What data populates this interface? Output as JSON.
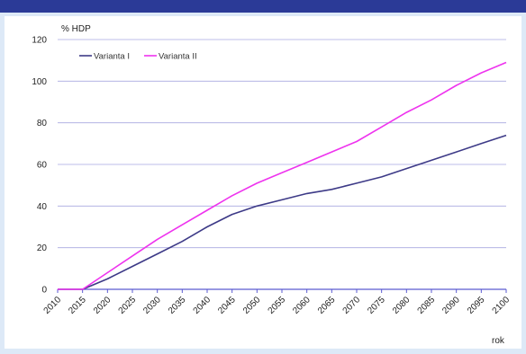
{
  "chart_data": {
    "type": "line",
    "ylabel": "% HDP",
    "xlabel": "rok",
    "ylim": [
      0,
      120
    ],
    "yticks": [
      0,
      20,
      40,
      60,
      80,
      100,
      120
    ],
    "xlim": [
      2010,
      2100
    ],
    "xticks": [
      2010,
      2015,
      2020,
      2025,
      2030,
      2035,
      2040,
      2045,
      2050,
      2055,
      2060,
      2065,
      2070,
      2075,
      2080,
      2085,
      2090,
      2095,
      2100
    ],
    "grid": true,
    "legend_position": "top-left",
    "series": [
      {
        "name": "Varianta I",
        "color": "#3d3a87",
        "x": [
          2010,
          2015,
          2020,
          2025,
          2030,
          2035,
          2040,
          2045,
          2050,
          2055,
          2060,
          2065,
          2070,
          2075,
          2080,
          2085,
          2090,
          2095,
          2100
        ],
        "y": [
          0,
          0,
          5,
          11,
          17,
          23,
          30,
          36,
          40,
          43,
          46,
          48,
          51,
          54,
          58,
          62,
          66,
          70,
          74
        ]
      },
      {
        "name": "Varianta II",
        "color": "#ee33ee",
        "x": [
          2010,
          2015,
          2020,
          2025,
          2030,
          2035,
          2040,
          2045,
          2050,
          2055,
          2060,
          2065,
          2070,
          2075,
          2080,
          2085,
          2090,
          2095,
          2100
        ],
        "y": [
          0,
          0,
          8,
          16,
          24,
          31,
          38,
          45,
          51,
          56,
          61,
          66,
          71,
          78,
          85,
          91,
          98,
          104,
          109
        ]
      }
    ]
  },
  "colors": {
    "background": "#dde9f7",
    "header_bar": "#2b3a97",
    "grid": "#a8a8e0",
    "zero_line": "#5a5ad0"
  }
}
